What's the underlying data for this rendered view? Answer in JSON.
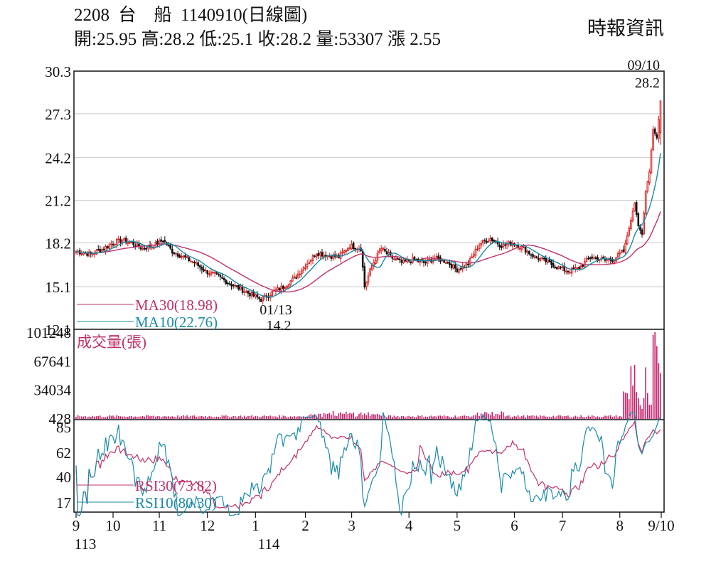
{
  "header": {
    "code": "2208",
    "name": "台　船",
    "date_label": "1140910(日線圖)",
    "source": "時報資訊",
    "ohlc": "開:25.95 高:28.2 低:25.1 收:28.2 量:53307 漲 2.55"
  },
  "chart_data": [
    {
      "type": "candlestick",
      "panel": "price",
      "y_ticks": [
        "30.3",
        "27.3",
        "24.2",
        "21.2",
        "18.2",
        "15.1",
        "12.1"
      ],
      "ylim": [
        12.1,
        30.3
      ],
      "x_ticks": [
        "9",
        "10",
        "11",
        "12",
        "1",
        "2",
        "3",
        "4",
        "5",
        "6",
        "7",
        "8",
        "9/10"
      ],
      "x_year_labels": [
        "113",
        "114"
      ],
      "series": [
        {
          "name": "MA30(18.98)",
          "color": "#c0306a"
        },
        {
          "name": "MA10(22.76)",
          "color": "#1a8aa8"
        }
      ],
      "annotations": [
        {
          "date": "09/10",
          "value": "28.2",
          "kind": "high"
        },
        {
          "date": "01/13",
          "value": "14.2",
          "kind": "low"
        }
      ],
      "anchors": [
        [
          0,
          17.6
        ],
        [
          8,
          17.4
        ],
        [
          15,
          17.8
        ],
        [
          20,
          18.2
        ],
        [
          25,
          18.4
        ],
        [
          30,
          18.2
        ],
        [
          36,
          17.8
        ],
        [
          42,
          18.0
        ],
        [
          47,
          18.4
        ],
        [
          52,
          17.6
        ],
        [
          58,
          17.2
        ],
        [
          64,
          16.8
        ],
        [
          70,
          16.2
        ],
        [
          76,
          15.9
        ],
        [
          82,
          15.4
        ],
        [
          88,
          15.0
        ],
        [
          94,
          14.6
        ],
        [
          100,
          14.2
        ],
        [
          106,
          14.7
        ],
        [
          112,
          15.1
        ],
        [
          118,
          15.7
        ],
        [
          124,
          16.6
        ],
        [
          130,
          17.5
        ],
        [
          136,
          17.3
        ],
        [
          142,
          17.2
        ],
        [
          148,
          18.0
        ],
        [
          154,
          17.8
        ],
        [
          156,
          15.1
        ],
        [
          160,
          16.6
        ],
        [
          165,
          17.8
        ],
        [
          170,
          17.2
        ],
        [
          176,
          16.8
        ],
        [
          182,
          17.0
        ],
        [
          188,
          16.8
        ],
        [
          194,
          17.1
        ],
        [
          200,
          16.9
        ],
        [
          206,
          16.3
        ],
        [
          212,
          16.7
        ],
        [
          218,
          18.1
        ],
        [
          224,
          18.5
        ],
        [
          230,
          18.0
        ],
        [
          236,
          18.2
        ],
        [
          242,
          17.8
        ],
        [
          248,
          17.2
        ],
        [
          254,
          16.9
        ],
        [
          260,
          16.5
        ],
        [
          266,
          16.2
        ],
        [
          272,
          16.4
        ],
        [
          278,
          17.2
        ],
        [
          284,
          17.0
        ],
        [
          290,
          17.0
        ],
        [
          296,
          17.6
        ],
        [
          300,
          19.8
        ],
        [
          302,
          21.0
        ],
        [
          304,
          19.4
        ],
        [
          306,
          18.8
        ],
        [
          308,
          21.8
        ],
        [
          310,
          23.2
        ],
        [
          312,
          26.2
        ],
        [
          314,
          25.6
        ],
        [
          316,
          28.2
        ]
      ]
    },
    {
      "type": "bar",
      "panel": "volume",
      "title": "成交量(張)",
      "y_ticks": [
        "101248",
        "67641",
        "34034",
        "428"
      ],
      "ylim": [
        428,
        101248
      ],
      "values_note_last": 53307
    },
    {
      "type": "line",
      "panel": "rsi",
      "y_ticks": [
        "85",
        "62",
        "40",
        "17"
      ],
      "ylim": [
        17,
        85
      ],
      "series": [
        {
          "name": "RSI30(73.82)",
          "color": "#c0306a"
        },
        {
          "name": "RSI10(80.30)",
          "color": "#1a8aa8"
        }
      ]
    }
  ]
}
